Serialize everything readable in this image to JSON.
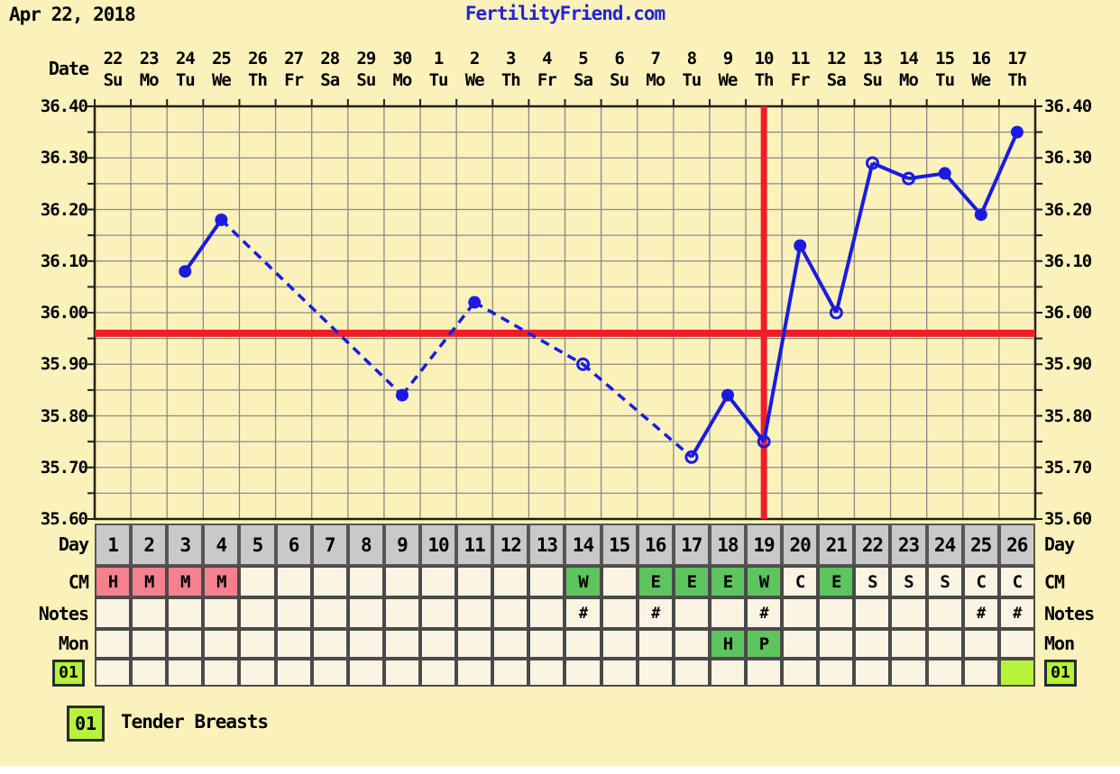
{
  "header": {
    "date": "Apr 22, 2018",
    "site": "FertilityFriend.com"
  },
  "labels": {
    "date": "Date",
    "day": "Day",
    "cm": "CM",
    "notes": "Notes",
    "mon": "Mon"
  },
  "chart_data": {
    "type": "line",
    "title": "Basal body temperature (Celsius) by cycle day",
    "x_axis": {
      "label": "Date",
      "dates": [
        "22",
        "23",
        "24",
        "25",
        "26",
        "27",
        "28",
        "29",
        "30",
        "1",
        "2",
        "3",
        "4",
        "5",
        "6",
        "7",
        "8",
        "9",
        "10",
        "11",
        "12",
        "13",
        "14",
        "15",
        "16",
        "17"
      ],
      "weekdays": [
        "Su",
        "Mo",
        "Tu",
        "We",
        "Th",
        "Fr",
        "Sa",
        "Su",
        "Mo",
        "Tu",
        "We",
        "Th",
        "Fr",
        "Sa",
        "Su",
        "Mo",
        "Tu",
        "We",
        "Th",
        "Fr",
        "Sa",
        "Su",
        "Mo",
        "Tu",
        "We",
        "Th"
      ]
    },
    "y_axis": {
      "min": 35.6,
      "max": 36.4,
      "tick_step": 0.1,
      "minor_step": 0.05,
      "tick_labels": [
        "36.40",
        "36.30",
        "36.20",
        "36.10",
        "36.00",
        "35.90",
        "35.80",
        "35.70",
        "35.60"
      ]
    },
    "points": [
      {
        "day": 3,
        "date": "Apr 24",
        "temp": 36.08,
        "marker": "filled"
      },
      {
        "day": 4,
        "date": "Apr 25",
        "temp": 36.18,
        "marker": "filled"
      },
      {
        "day": 9,
        "date": "Apr 30",
        "temp": 35.84,
        "marker": "filled"
      },
      {
        "day": 11,
        "date": "May 2",
        "temp": 36.02,
        "marker": "filled"
      },
      {
        "day": 14,
        "date": "May 5",
        "temp": 35.9,
        "marker": "open"
      },
      {
        "day": 17,
        "date": "May 8",
        "temp": 35.72,
        "marker": "open"
      },
      {
        "day": 18,
        "date": "May 9",
        "temp": 35.84,
        "marker": "filled"
      },
      {
        "day": 19,
        "date": "May 10",
        "temp": 35.75,
        "marker": "open"
      },
      {
        "day": 20,
        "date": "May 11",
        "temp": 36.13,
        "marker": "filled"
      },
      {
        "day": 21,
        "date": "May 12",
        "temp": 36.0,
        "marker": "open"
      },
      {
        "day": 22,
        "date": "May 13",
        "temp": 36.29,
        "marker": "open"
      },
      {
        "day": 23,
        "date": "May 14",
        "temp": 36.26,
        "marker": "open"
      },
      {
        "day": 24,
        "date": "May 15",
        "temp": 36.27,
        "marker": "filled"
      },
      {
        "day": 25,
        "date": "May 16",
        "temp": 36.19,
        "marker": "filled"
      },
      {
        "day": 26,
        "date": "May 17",
        "temp": 36.35,
        "marker": "filled"
      }
    ],
    "line_rule": "solid between consecutive days, dashed across missing days",
    "coverline_temp": 35.96,
    "ovulation_day": 19,
    "legend_position": "none",
    "grid": "on"
  },
  "table": {
    "day": {
      "label": "Day",
      "values": [
        "1",
        "2",
        "3",
        "4",
        "5",
        "6",
        "7",
        "8",
        "9",
        "10",
        "11",
        "12",
        "13",
        "14",
        "15",
        "16",
        "17",
        "18",
        "19",
        "20",
        "21",
        "22",
        "23",
        "24",
        "25",
        "26"
      ]
    },
    "cm": {
      "label": "CM",
      "cells": [
        {
          "v": "H",
          "bg": "pink"
        },
        {
          "v": "M",
          "bg": "pink"
        },
        {
          "v": "M",
          "bg": "pink"
        },
        {
          "v": "M",
          "bg": "pink"
        },
        {},
        {},
        {},
        {},
        {},
        {},
        {},
        {},
        {},
        {
          "v": "W",
          "bg": "green"
        },
        {},
        {
          "v": "E",
          "bg": "green"
        },
        {
          "v": "E",
          "bg": "green"
        },
        {
          "v": "E",
          "bg": "green"
        },
        {
          "v": "W",
          "bg": "green"
        },
        {
          "v": "C",
          "bg": "plain"
        },
        {
          "v": "E",
          "bg": "green"
        },
        {
          "v": "S",
          "bg": "plain"
        },
        {
          "v": "S",
          "bg": "plain"
        },
        {
          "v": "S",
          "bg": "plain"
        },
        {
          "v": "C",
          "bg": "plain"
        },
        {
          "v": "C",
          "bg": "plain"
        }
      ]
    },
    "notes": {
      "label": "Notes",
      "values": [
        "",
        "",
        "",
        "",
        "",
        "",
        "",
        "",
        "",
        "",
        "",
        "",
        "",
        "#",
        "",
        "#",
        "",
        "",
        "#",
        "",
        "",
        "",
        "",
        "",
        "#",
        "#"
      ]
    },
    "mon": {
      "label": "Mon",
      "cells": [
        {},
        {},
        {},
        {},
        {},
        {},
        {},
        {},
        {},
        {},
        {},
        {},
        {},
        {},
        {},
        {},
        {},
        {
          "v": "H",
          "bg": "green"
        },
        {
          "v": "P",
          "bg": "green"
        },
        {},
        {},
        {},
        {},
        {},
        {},
        {}
      ]
    },
    "symptom": {
      "code": "01",
      "active_days": [
        26
      ]
    }
  },
  "legend": {
    "code": "01",
    "text": "Tender Breasts"
  },
  "colors": {
    "page_bg": "#faf2ba",
    "title_blue": "#2222dd",
    "line_blue": "#1b1bdf",
    "red": "#ed1f26",
    "grid": "#8a8a8a",
    "frame": "#1f1f1f",
    "cell_cream": "#fbf4e2",
    "cell_gray": "#c9c9c9",
    "cell_pink": "#f5818f",
    "cell_green": "#5ec45e",
    "cell_bright": "#b6f23c"
  }
}
